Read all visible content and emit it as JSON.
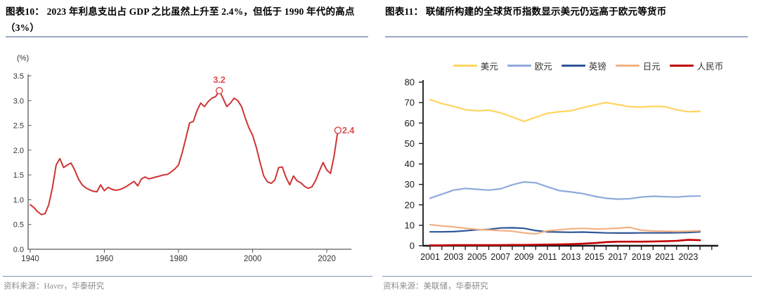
{
  "figure10": {
    "title": "图表10：  2023 年利息支出占 GDP 之比虽然上升至 2.4%，但低于 1990 年代的高点（3%）",
    "source": "资料来源：Haver，华泰研究",
    "unit_label": "(%)"
  },
  "figure11": {
    "title": "图表11：  联储所构建的全球货币指数显示美元仍远高于欧元等货币",
    "source": "资料来源：美联储，华泰研究"
  },
  "chart_data": [
    {
      "type": "line",
      "title": "2023年利息支出占GDP之比虽然上升至2.4%，但低于1990年代的高点（3%）",
      "ylabel": "(%)",
      "xlim": [
        1940,
        2024
      ],
      "ylim": [
        0,
        3.5
      ],
      "grid": false,
      "yticks": [
        0.0,
        0.5,
        1.0,
        1.5,
        2.0,
        2.5,
        3.0,
        3.5
      ],
      "xticks": [
        1940,
        1960,
        1980,
        2000,
        2020
      ],
      "x": [
        1940,
        1941,
        1942,
        1943,
        1944,
        1945,
        1946,
        1947,
        1948,
        1949,
        1950,
        1951,
        1952,
        1953,
        1954,
        1955,
        1956,
        1957,
        1958,
        1959,
        1960,
        1961,
        1962,
        1963,
        1964,
        1965,
        1966,
        1967,
        1968,
        1969,
        1970,
        1971,
        1972,
        1973,
        1974,
        1975,
        1976,
        1977,
        1978,
        1979,
        1980,
        1981,
        1982,
        1983,
        1984,
        1985,
        1986,
        1987,
        1988,
        1989,
        1990,
        1991,
        1992,
        1993,
        1994,
        1995,
        1996,
        1997,
        1998,
        1999,
        2000,
        2001,
        2002,
        2003,
        2004,
        2005,
        2006,
        2007,
        2008,
        2009,
        2010,
        2011,
        2012,
        2013,
        2014,
        2015,
        2016,
        2017,
        2018,
        2019,
        2020,
        2021,
        2022,
        2023
      ],
      "series": [
        {
          "id": "interest-gdp",
          "name": "利息支出占GDP之比",
          "color": "#ce3434",
          "values": [
            0.9,
            0.84,
            0.76,
            0.7,
            0.72,
            0.9,
            1.25,
            1.7,
            1.83,
            1.65,
            1.7,
            1.74,
            1.6,
            1.42,
            1.3,
            1.24,
            1.2,
            1.17,
            1.16,
            1.3,
            1.18,
            1.25,
            1.21,
            1.19,
            1.2,
            1.23,
            1.27,
            1.32,
            1.37,
            1.28,
            1.42,
            1.46,
            1.42,
            1.44,
            1.46,
            1.48,
            1.5,
            1.51,
            1.56,
            1.62,
            1.7,
            1.95,
            2.25,
            2.55,
            2.58,
            2.8,
            2.95,
            2.88,
            2.98,
            3.05,
            3.08,
            3.2,
            3.05,
            2.88,
            2.95,
            3.05,
            3.0,
            2.88,
            2.65,
            2.45,
            2.3,
            2.05,
            1.75,
            1.48,
            1.36,
            1.33,
            1.4,
            1.65,
            1.66,
            1.45,
            1.3,
            1.48,
            1.38,
            1.34,
            1.27,
            1.23,
            1.26,
            1.39,
            1.58,
            1.75,
            1.6,
            1.53,
            1.9,
            2.4
          ]
        }
      ],
      "annotations": [
        {
          "x": 1991,
          "y": 3.2,
          "label": "3.2",
          "color": "#d94f4f"
        },
        {
          "x": 2023,
          "y": 2.4,
          "label": "2.4",
          "color": "#d94f4f"
        }
      ]
    },
    {
      "type": "line",
      "title": "联储所构建的全球货币指数显示美元仍远高于欧元等货币",
      "xlim": [
        2001,
        2025
      ],
      "ylim": [
        0,
        80
      ],
      "grid": false,
      "legend_position": "top",
      "yticks": [
        0,
        10,
        20,
        30,
        40,
        50,
        60,
        70,
        80
      ],
      "xticks": [
        2001,
        2003,
        2005,
        2007,
        2009,
        2011,
        2013,
        2015,
        2017,
        2019,
        2021,
        2023
      ],
      "x": [
        2001,
        2002,
        2003,
        2004,
        2005,
        2006,
        2007,
        2008,
        2009,
        2010,
        2011,
        2012,
        2013,
        2014,
        2015,
        2016,
        2017,
        2018,
        2019,
        2020,
        2021,
        2022,
        2023,
        2024
      ],
      "series": [
        {
          "id": "usd",
          "name": "美元",
          "color": "#ffd45e",
          "values": [
            71.5,
            69.5,
            68.2,
            66.5,
            66.0,
            66.3,
            65.0,
            63.0,
            60.8,
            62.8,
            64.8,
            65.5,
            66.0,
            67.5,
            68.8,
            70.0,
            69.0,
            68.0,
            67.8,
            68.2,
            68.0,
            66.5,
            65.5,
            65.7
          ]
        },
        {
          "id": "eur",
          "name": "欧元",
          "color": "#8faadc",
          "values": [
            23.2,
            25.2,
            27.2,
            28.0,
            27.6,
            27.2,
            27.8,
            29.8,
            31.2,
            30.8,
            28.8,
            27.0,
            26.3,
            25.5,
            24.2,
            23.2,
            22.8,
            23.0,
            23.8,
            24.2,
            24.0,
            23.8,
            24.2,
            24.3
          ]
        },
        {
          "id": "gbp",
          "name": "英镑",
          "color": "#2f5597",
          "values": [
            6.8,
            6.8,
            6.9,
            7.3,
            7.8,
            8.0,
            8.7,
            8.8,
            8.5,
            7.4,
            6.8,
            6.7,
            6.6,
            6.7,
            6.5,
            6.3,
            6.2,
            6.2,
            6.3,
            6.3,
            6.3,
            6.4,
            6.5,
            6.8
          ]
        },
        {
          "id": "jpy",
          "name": "日元",
          "color": "#f2b183",
          "values": [
            10.3,
            9.7,
            9.2,
            8.6,
            8.0,
            7.7,
            7.4,
            7.1,
            6.3,
            5.8,
            7.3,
            7.8,
            8.3,
            8.5,
            8.2,
            8.3,
            8.6,
            9.0,
            7.6,
            7.2,
            7.1,
            7.0,
            7.1,
            7.3
          ]
        },
        {
          "id": "cny",
          "name": "人民币",
          "color": "#c00000",
          "values": [
            0.2,
            0.2,
            0.3,
            0.3,
            0.3,
            0.3,
            0.3,
            0.4,
            0.4,
            0.5,
            0.6,
            0.7,
            0.8,
            1.0,
            1.3,
            1.8,
            2.0,
            2.0,
            2.0,
            2.1,
            2.2,
            2.4,
            2.9,
            2.7
          ]
        }
      ]
    }
  ]
}
